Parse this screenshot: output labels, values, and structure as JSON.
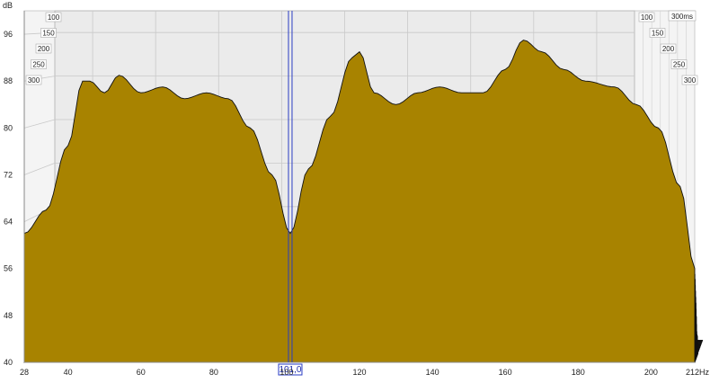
{
  "chart_data": {
    "type": "area",
    "subtype": "waterfall",
    "ylabel": "dB",
    "ylim": [
      40,
      100
    ],
    "xlim": [
      28,
      212
    ],
    "x_ticks": [
      "28",
      "40",
      "60",
      "80",
      "100",
      "120",
      "140",
      "160",
      "180",
      "200",
      "212Hz"
    ],
    "y_ticks": [
      "40",
      "48",
      "56",
      "64",
      "72",
      "80",
      "88",
      "96"
    ],
    "time_ticks_left": [
      "100",
      "150",
      "200",
      "250",
      "300"
    ],
    "time_ticks_right": [
      "100",
      "150",
      "200",
      "250",
      "300"
    ],
    "time_label": "300ms",
    "cursor_label": "101,0",
    "cursor_hz": 101,
    "fill_color": "#a88300",
    "line_color": "#111111",
    "cursor_color": "#2a3cc4",
    "slices": 40,
    "front_response": [
      {
        "hz": 28,
        "db": 62
      },
      {
        "hz": 34,
        "db": 66
      },
      {
        "hz": 40,
        "db": 77
      },
      {
        "hz": 44,
        "db": 88
      },
      {
        "hz": 46,
        "db": 88
      },
      {
        "hz": 50,
        "db": 86
      },
      {
        "hz": 54,
        "db": 89
      },
      {
        "hz": 60,
        "db": 86
      },
      {
        "hz": 66,
        "db": 87
      },
      {
        "hz": 72,
        "db": 85
      },
      {
        "hz": 78,
        "db": 86
      },
      {
        "hz": 84,
        "db": 85
      },
      {
        "hz": 90,
        "db": 80
      },
      {
        "hz": 96,
        "db": 72
      },
      {
        "hz": 101,
        "db": 62
      },
      {
        "hz": 106,
        "db": 73
      },
      {
        "hz": 112,
        "db": 82
      },
      {
        "hz": 118,
        "db": 92
      },
      {
        "hz": 120,
        "db": 93
      },
      {
        "hz": 124,
        "db": 86
      },
      {
        "hz": 130,
        "db": 84
      },
      {
        "hz": 136,
        "db": 86
      },
      {
        "hz": 142,
        "db": 87
      },
      {
        "hz": 148,
        "db": 86
      },
      {
        "hz": 154,
        "db": 86
      },
      {
        "hz": 160,
        "db": 90
      },
      {
        "hz": 165,
        "db": 95
      },
      {
        "hz": 170,
        "db": 93
      },
      {
        "hz": 176,
        "db": 90
      },
      {
        "hz": 182,
        "db": 88
      },
      {
        "hz": 190,
        "db": 87
      },
      {
        "hz": 196,
        "db": 84
      },
      {
        "hz": 202,
        "db": 80
      },
      {
        "hz": 208,
        "db": 70
      },
      {
        "hz": 212,
        "db": 56
      }
    ]
  }
}
